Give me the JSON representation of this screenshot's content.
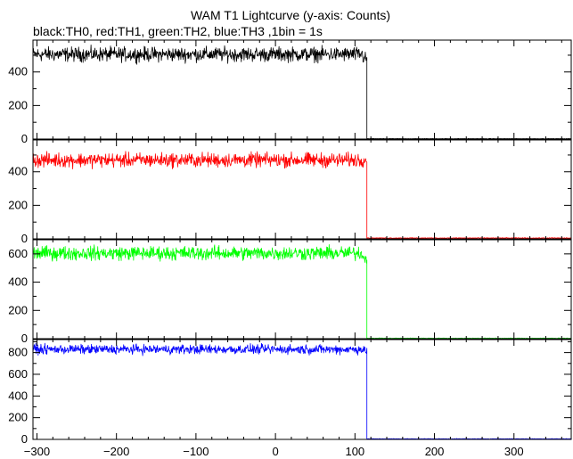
{
  "chart_data": {
    "type": "line",
    "title": "WAM T1 Lightcurve (y-axis: Counts)",
    "subtitle": "black:TH0, red:TH1, green:TH2, blue:TH3 ,1bin = 1s",
    "xlim": [
      -305,
      372
    ],
    "x_ticks": [
      -300,
      -200,
      -100,
      0,
      100,
      200,
      300
    ],
    "x_tick_labels": [
      "−300",
      "−200",
      "−100",
      "0",
      "100",
      "200",
      "300"
    ],
    "grid": false,
    "drop_x": 115,
    "panels": [
      {
        "name": "TH0",
        "color": "#000000",
        "ylim": [
          0,
          590
        ],
        "y_ticks": [
          0,
          200,
          400
        ],
        "segments": [
          {
            "x_start": -305,
            "x_end": 110,
            "mean": 505,
            "noise": 35
          },
          {
            "x_start": 110,
            "x_end": 115,
            "mean": 480,
            "noise": 30
          },
          {
            "x_start": 115,
            "x_end": 372,
            "mean": 2,
            "noise": 1
          }
        ]
      },
      {
        "name": "TH1",
        "color": "#ff0000",
        "ylim": [
          0,
          590
        ],
        "y_ticks": [
          0,
          200,
          400
        ],
        "segments": [
          {
            "x_start": -305,
            "x_end": 110,
            "mean": 470,
            "noise": 35
          },
          {
            "x_start": 110,
            "x_end": 115,
            "mean": 470,
            "noise": 30
          },
          {
            "x_start": 115,
            "x_end": 372,
            "mean": 5,
            "noise": 2
          }
        ]
      },
      {
        "name": "TH2",
        "color": "#00ff00",
        "ylim": [
          0,
          700
        ],
        "y_ticks": [
          0,
          200,
          400,
          600
        ],
        "segments": [
          {
            "x_start": -305,
            "x_end": 110,
            "mean": 605,
            "noise": 40
          },
          {
            "x_start": 110,
            "x_end": 115,
            "mean": 570,
            "noise": 30
          },
          {
            "x_start": 115,
            "x_end": 372,
            "mean": 3,
            "noise": 2
          }
        ]
      },
      {
        "name": "TH3",
        "color": "#0000ff",
        "ylim": [
          0,
          920
        ],
        "y_ticks": [
          0,
          200,
          400,
          600,
          800
        ],
        "segments": [
          {
            "x_start": -305,
            "x_end": 110,
            "mean": 830,
            "noise": 35
          },
          {
            "x_start": 110,
            "x_end": 115,
            "mean": 820,
            "noise": 30
          },
          {
            "x_start": 115,
            "x_end": 372,
            "mean": 5,
            "noise": 2
          }
        ]
      }
    ]
  }
}
